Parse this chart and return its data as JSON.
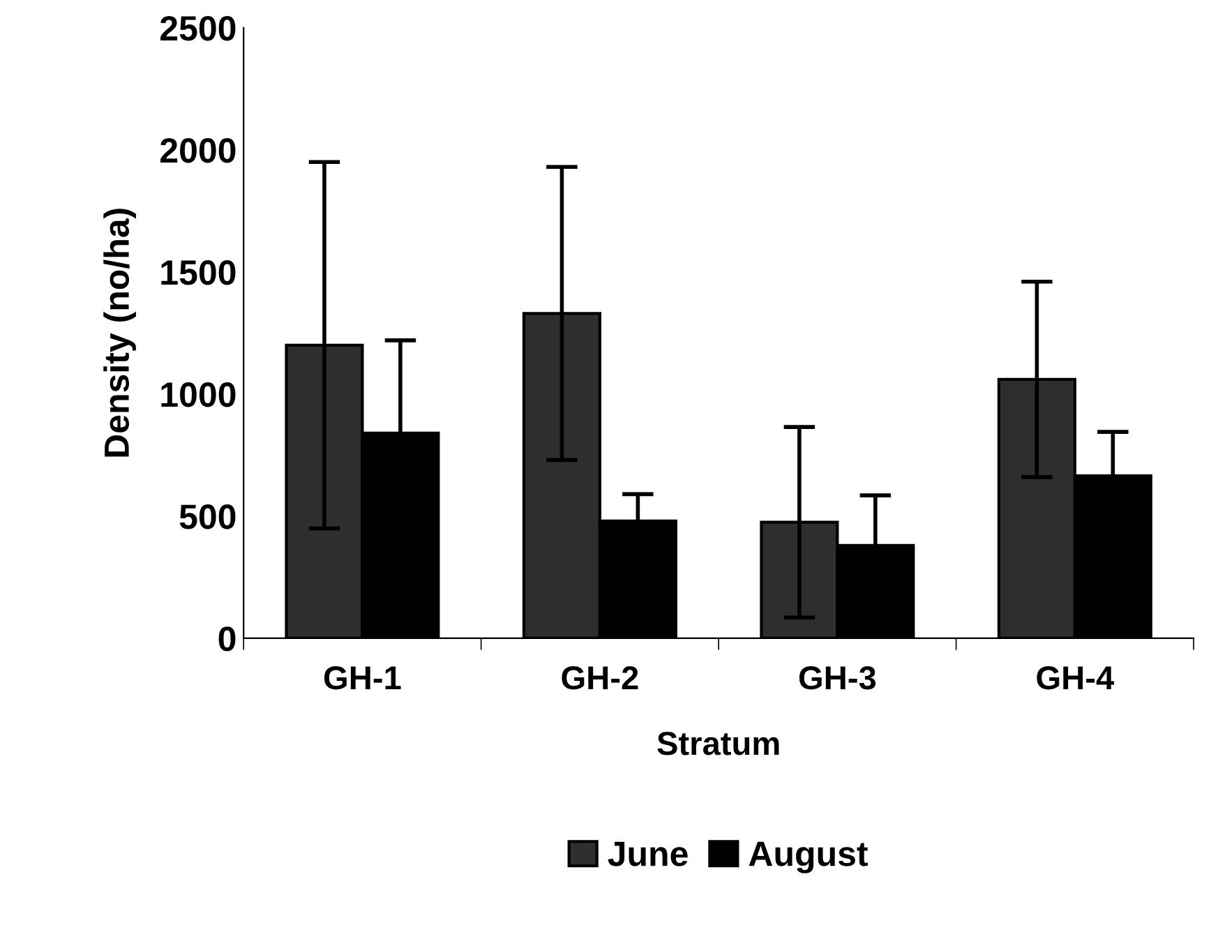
{
  "chart_data": {
    "type": "bar",
    "xlabel": "Stratum",
    "ylabel": "Density (no/ha)",
    "categories": [
      "GH-1",
      "GH-2",
      "GH-3",
      "GH-4"
    ],
    "series": [
      {
        "name": "June",
        "color": "#2e2e2e",
        "values": [
          1200,
          1330,
          475,
          1060
        ],
        "errors": [
          750,
          600,
          390,
          400
        ]
      },
      {
        "name": "August",
        "color": "#000000",
        "values": [
          840,
          480,
          380,
          665
        ],
        "errors": [
          380,
          110,
          205,
          180
        ]
      }
    ],
    "ylim": [
      0,
      2500
    ],
    "yticks": [
      0,
      500,
      1000,
      1500,
      2000,
      2500
    ],
    "grid": false,
    "legend": "bottom"
  }
}
